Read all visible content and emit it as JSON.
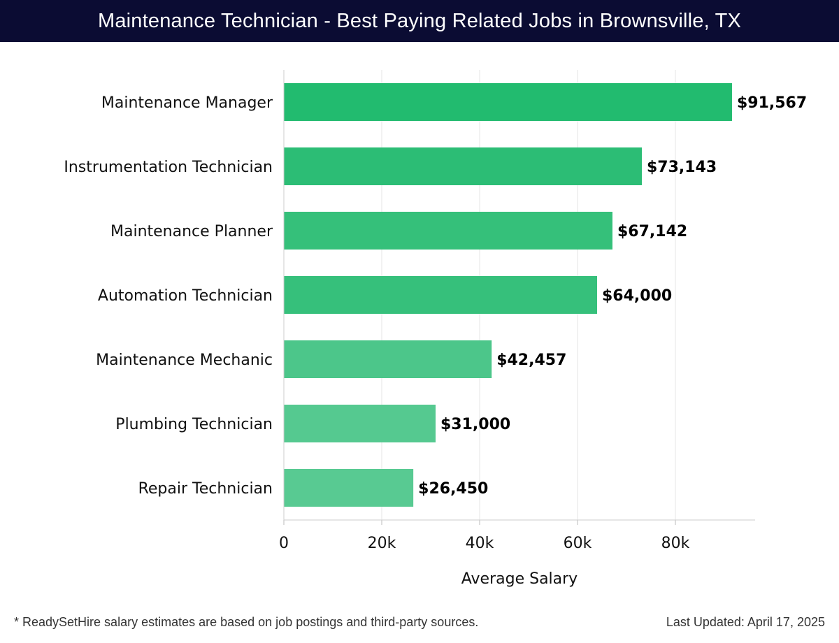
{
  "header": {
    "title": "Maintenance Technician - Best Paying Related Jobs in Brownsville, TX"
  },
  "footer": {
    "note": "* ReadySetHire salary estimates are based on job postings and third-party sources.",
    "updated": "Last Updated: April 17, 2025"
  },
  "chart_data": {
    "type": "bar",
    "orientation": "horizontal",
    "title": "Maintenance Technician - Best Paying Related Jobs in Brownsville, TX",
    "xlabel": "Average Salary",
    "ylabel": "",
    "xlim": [
      0,
      96000
    ],
    "grid": true,
    "categories": [
      "Maintenance Manager",
      "Instrumentation Technician",
      "Maintenance Planner",
      "Automation Technician",
      "Maintenance Mechanic",
      "Plumbing Technician",
      "Repair Technician"
    ],
    "values": [
      91567,
      73143,
      67142,
      64000,
      42457,
      31000,
      26450
    ],
    "value_labels": [
      "$91,567",
      "$73,143",
      "$67,142",
      "$64,000",
      "$42,457",
      "$31,000",
      "$26,450"
    ],
    "ticks": [
      0,
      20000,
      40000,
      60000,
      80000
    ],
    "tick_labels": [
      "0",
      "20k",
      "40k",
      "60k",
      "80k"
    ],
    "colors": [
      "#22bb6f",
      "#2cbd75",
      "#35c07a",
      "#36c07b",
      "#4cc68a",
      "#55c990",
      "#58ca92"
    ]
  }
}
